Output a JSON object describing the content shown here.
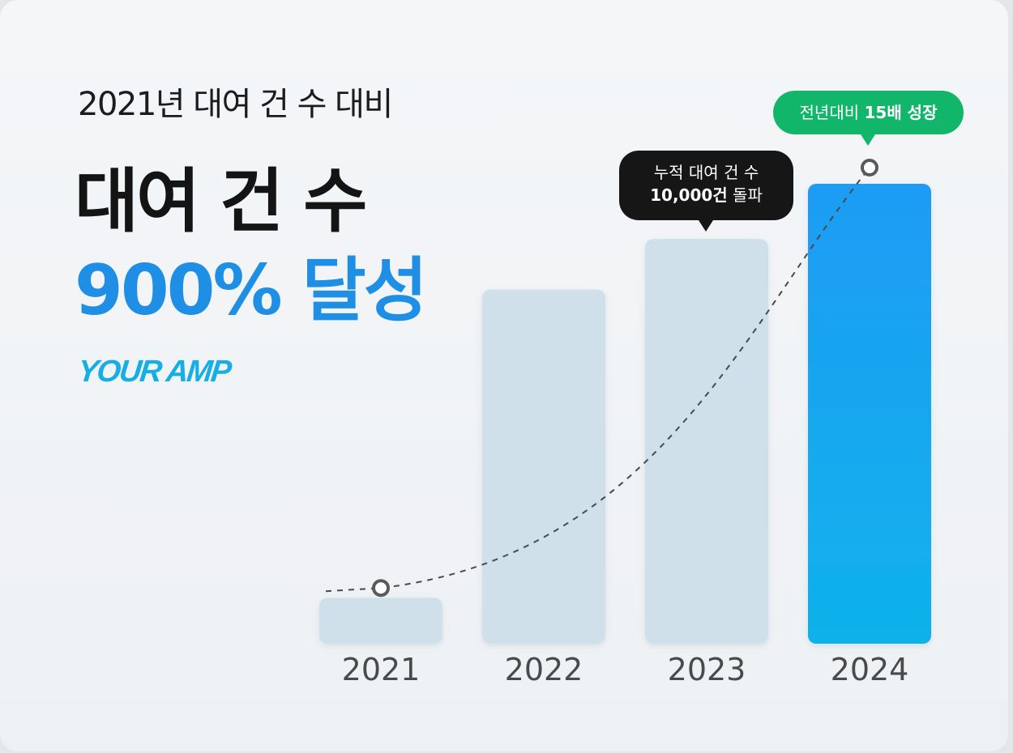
{
  "header": {
    "subtitle": "2021년 대여 건 수 대비",
    "headline_line1": "대여 건 수",
    "headline_line2": "900% 달성",
    "brand": "YOUR AMP"
  },
  "callouts": {
    "cumulative_line1": "누적 대여 건 수",
    "cumulative_value": "10,000건",
    "cumulative_suffix": " 돌파",
    "growth_prefix": "전년대비 ",
    "growth_value": "15배 성장"
  },
  "colors": {
    "accent": "#1f8fe5",
    "bar_muted": "#cfe0eb",
    "bar_highlight": "#1aa6f2",
    "callout_green": "#12b66a",
    "callout_dark": "#161616",
    "trend_line": "#4a4a4a"
  },
  "chart_data": {
    "type": "bar",
    "categories": [
      "2021",
      "2022",
      "2023",
      "2024"
    ],
    "values": [
      10,
      77,
      88,
      100
    ],
    "ylim": [
      0,
      100
    ],
    "highlight_index": 3,
    "trend_line": {
      "style": "dashed",
      "markers": [
        "2021",
        "2024"
      ]
    },
    "grid": false,
    "legend": "none"
  }
}
